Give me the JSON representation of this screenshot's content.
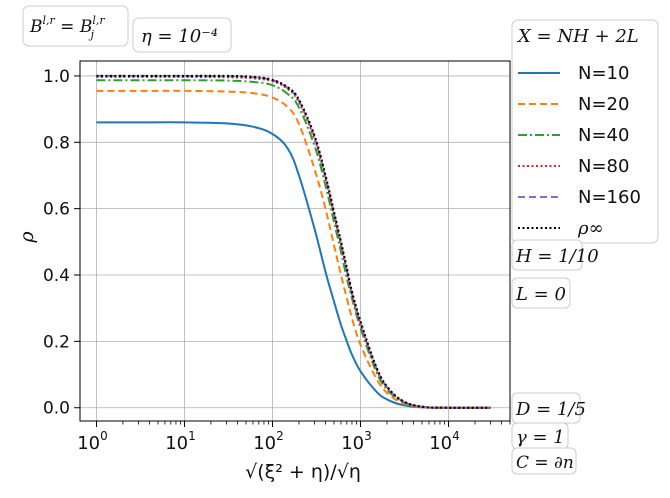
{
  "chart_data": {
    "type": "line",
    "xscale": "log",
    "xlim": [
      0.65,
      50000
    ],
    "ylim": [
      -0.04,
      1.045
    ],
    "grid": true,
    "legend_placement": "right-outside",
    "xlabel": "√(ξ² + η)/√η",
    "ylabel": "ρ",
    "xticks": [
      {
        "value": 1,
        "label": "0"
      },
      {
        "value": 10,
        "label": "1"
      },
      {
        "value": 100,
        "label": "2"
      },
      {
        "value": 1000,
        "label": "3"
      },
      {
        "value": 10000,
        "label": "4"
      }
    ],
    "xtick_base": "10",
    "yticks": [
      {
        "value": 0.0,
        "label": "0.0"
      },
      {
        "value": 0.2,
        "label": "0.2"
      },
      {
        "value": 0.4,
        "label": "0.4"
      },
      {
        "value": 0.6,
        "label": "0.6"
      },
      {
        "value": 0.8,
        "label": "0.8"
      },
      {
        "value": 1.0,
        "label": "1.0"
      }
    ],
    "x": [
      1,
      3,
      10,
      30,
      60,
      100,
      150,
      200,
      300,
      400,
      500,
      600,
      700,
      800,
      1000,
      1500,
      2000,
      3000,
      5000,
      10000,
      30000
    ],
    "series": [
      {
        "name": "N=10",
        "color": "#1f77b4",
        "dash": "solid",
        "values": [
          0.86,
          0.86,
          0.86,
          0.857,
          0.847,
          0.825,
          0.78,
          0.7,
          0.54,
          0.41,
          0.32,
          0.25,
          0.2,
          0.16,
          0.11,
          0.05,
          0.025,
          0.008,
          0.001,
          0.0,
          0.0
        ]
      },
      {
        "name": "N=20",
        "color": "#ff7f0e",
        "dash": "dashed",
        "values": [
          0.955,
          0.955,
          0.955,
          0.953,
          0.948,
          0.935,
          0.905,
          0.855,
          0.72,
          0.6,
          0.49,
          0.4,
          0.33,
          0.27,
          0.19,
          0.09,
          0.045,
          0.014,
          0.002,
          0.0,
          0.0
        ]
      },
      {
        "name": "N=40",
        "color": "#2ca02c",
        "dash": "dashdot",
        "values": [
          0.987,
          0.987,
          0.987,
          0.986,
          0.982,
          0.972,
          0.945,
          0.905,
          0.79,
          0.67,
          0.56,
          0.47,
          0.39,
          0.33,
          0.24,
          0.11,
          0.055,
          0.018,
          0.003,
          0.0,
          0.0
        ]
      },
      {
        "name": "N=80",
        "color": "#d62728",
        "dash": "dotted",
        "values": [
          0.997,
          0.997,
          0.997,
          0.996,
          0.993,
          0.984,
          0.96,
          0.92,
          0.81,
          0.69,
          0.58,
          0.49,
          0.41,
          0.34,
          0.25,
          0.12,
          0.06,
          0.02,
          0.003,
          0.0,
          0.0
        ]
      },
      {
        "name": "N=160",
        "color": "#9467bd",
        "dash": "dashed",
        "values": [
          1.0,
          1.0,
          1.0,
          0.999,
          0.996,
          0.987,
          0.963,
          0.925,
          0.815,
          0.695,
          0.585,
          0.495,
          0.415,
          0.345,
          0.255,
          0.122,
          0.062,
          0.02,
          0.003,
          0.0,
          0.0
        ]
      },
      {
        "name": "ρ∞",
        "color": "#000000",
        "dash": "dotted",
        "values": [
          1.0,
          1.0,
          1.0,
          1.0,
          0.997,
          0.988,
          0.965,
          0.928,
          0.82,
          0.7,
          0.59,
          0.5,
          0.42,
          0.35,
          0.26,
          0.125,
          0.064,
          0.021,
          0.003,
          0.0,
          0.0
        ]
      }
    ],
    "annotations": [
      {
        "id": "bnd-type",
        "text": "B^{l,r} = B_j^{l,r}"
      },
      {
        "id": "eta",
        "text": "η = 10⁻⁴"
      },
      {
        "id": "xdef",
        "text": "X = NH + 2L"
      },
      {
        "id": "H",
        "text": "H = 1/10"
      },
      {
        "id": "L",
        "text": "L = 0"
      },
      {
        "id": "D",
        "text": "D = 1/5"
      },
      {
        "id": "gamma",
        "text": "γ = 1"
      },
      {
        "id": "C",
        "text": "C = ∂n"
      }
    ]
  }
}
